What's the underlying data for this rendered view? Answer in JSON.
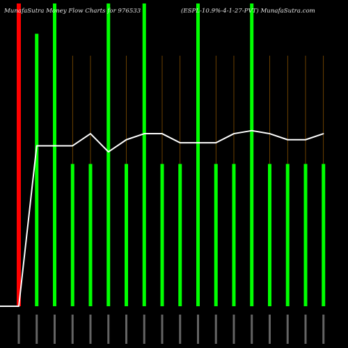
{
  "header": {
    "title_left": "MunafaSutra  Money Flow  Charts for 976533",
    "title_right": "(ESPL-10.9%-4-1-27-PVT) MunafaSutra.com"
  },
  "colors": {
    "background": "#000000",
    "bar_up": "#00ff00",
    "bar_down": "#ff0000",
    "line": "#ffffff",
    "guide": "#b36b00",
    "tick_text": "#dddddd"
  },
  "chart_data": {
    "type": "bar",
    "title": "MunafaSutra  Money Flow  Charts for 976533",
    "subtitle": "(ESPL-10.9%-4-1-27-PVT) MunafaSutra.com",
    "xlabel": "",
    "ylabel": "",
    "grid": false,
    "categories": [
      "",
      "",
      "",
      "",
      "",
      "",
      "",
      "",
      "",
      "",
      "",
      "",
      "",
      "",
      "",
      "",
      "",
      ""
    ],
    "category_note": "date tick labels are printed rotated and are too small to read",
    "series": [
      {
        "kind": "bar",
        "values": [
          100,
          90,
          100,
          47,
          47,
          100,
          47,
          100,
          47,
          47,
          100,
          47,
          47,
          100,
          47,
          47,
          47,
          47
        ],
        "colors": [
          "red",
          "green",
          "green",
          "green",
          "green",
          "green",
          "green",
          "green",
          "green",
          "green",
          "green",
          "green",
          "green",
          "green",
          "green",
          "green",
          "green",
          "green"
        ]
      },
      {
        "kind": "line",
        "values": [
          0,
          53,
          53,
          53,
          57,
          51,
          55,
          57,
          57,
          54,
          54,
          54,
          57,
          58,
          57,
          55,
          55,
          57
        ]
      }
    ],
    "ylim": [
      0,
      100
    ]
  }
}
